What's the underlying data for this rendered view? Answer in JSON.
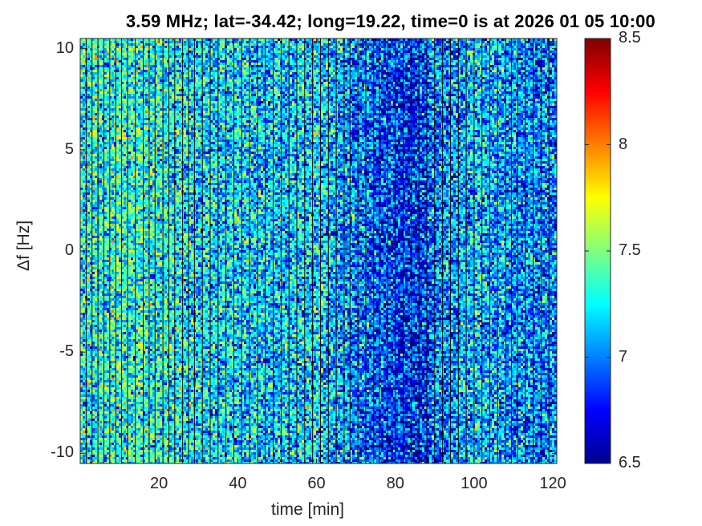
{
  "title": "3.59 MHz;  lat=-34.42; long=19.22, time=0 is at 2026 01 05 10:00",
  "chart_data": {
    "type": "heatmap",
    "title": "3.59 MHz;  lat=-34.42; long=19.22, time=0 is at 2026 01 05 10:00",
    "xlabel": "time [min]",
    "ylabel": "Δf [Hz]",
    "xlim": [
      0,
      121
    ],
    "ylim": [
      -10.5,
      10.5
    ],
    "xticks": [
      20,
      40,
      60,
      80,
      100,
      120
    ],
    "xtick_labels": [
      "20",
      "40",
      "60",
      "80",
      "100",
      "120"
    ],
    "yticks": [
      -10,
      -5,
      0,
      5,
      10
    ],
    "ytick_labels": [
      "-10",
      "-5",
      "0",
      "5",
      "10"
    ],
    "colormap": "jet",
    "colorbar": {
      "range": [
        6.5,
        8.5
      ],
      "ticks": [
        6.5,
        7,
        7.5,
        8,
        8.5
      ],
      "tick_labels": [
        "6.5",
        "7",
        "7.5",
        "8",
        "8.5"
      ]
    },
    "column_gaps_min": [
      1.5,
      3,
      4.5,
      6,
      7.5,
      9,
      10.5,
      12,
      14,
      16,
      17.5,
      19,
      21,
      22.5,
      24,
      26,
      27.5,
      29,
      31,
      33,
      35,
      37,
      39,
      41,
      43,
      45,
      47,
      49,
      51,
      53,
      55,
      57,
      59,
      61,
      63,
      65,
      67,
      68.5,
      70.5,
      72.5,
      74.5,
      76,
      78,
      80,
      82,
      84,
      86,
      88,
      90,
      92,
      94,
      96,
      98,
      100,
      102,
      104,
      106,
      108,
      109.5,
      111,
      113,
      115,
      117,
      119
    ],
    "background_level_by_time": [
      {
        "x": 0,
        "y": 7.25
      },
      {
        "x": 10,
        "y": 7.35
      },
      {
        "x": 20,
        "y": 7.3
      },
      {
        "x": 30,
        "y": 7.2
      },
      {
        "x": 40,
        "y": 7.2
      },
      {
        "x": 50,
        "y": 7.15
      },
      {
        "x": 60,
        "y": 7.2
      },
      {
        "x": 70,
        "y": 7.0
      },
      {
        "x": 80,
        "y": 6.85
      },
      {
        "x": 85,
        "y": 6.8
      },
      {
        "x": 90,
        "y": 7.0
      },
      {
        "x": 100,
        "y": 7.15
      },
      {
        "x": 110,
        "y": 7.05
      },
      {
        "x": 120,
        "y": 7.0
      }
    ],
    "grid": false,
    "legend": "colorbar-right"
  }
}
